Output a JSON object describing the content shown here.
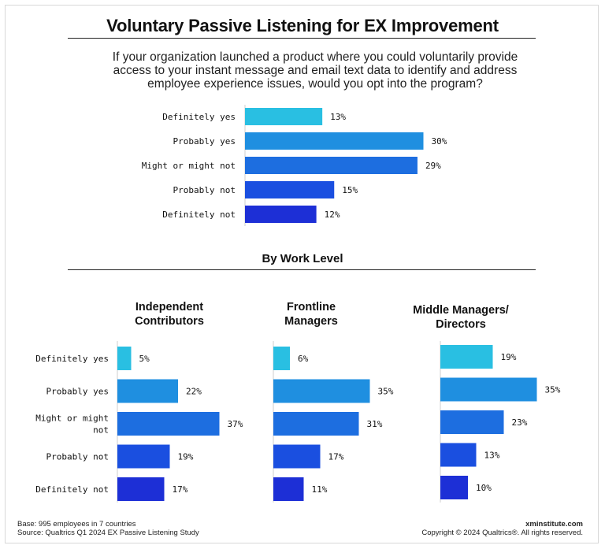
{
  "title": "Voluntary Passive Listening for EX Improvement",
  "question": "If your organization launched a product where you could voluntarily provide access to your instant message and email text data to identify and address employee experience issues, would you opt into the program?",
  "subtitle": "By Work Level",
  "footer": {
    "base": "Base: 995 employees in 7 countries",
    "source": "Source: Qualtrics Q1 2024 EX Passive Listening Study",
    "brand": "xminstitute.com",
    "copyright": "Copyright © 2024 Qualtrics®. All rights reserved."
  },
  "colors": [
    "#29bfe2",
    "#1f8fe0",
    "#1d6ee0",
    "#1a4fe0",
    "#1d2fd6"
  ],
  "chart_data": [
    {
      "type": "bar",
      "orientation": "horizontal",
      "title": "Overall",
      "categories": [
        "Definitely yes",
        "Probably yes",
        "Might or might not",
        "Probably not",
        "Definitely not"
      ],
      "values": [
        13,
        30,
        29,
        15,
        12
      ],
      "unit": "%"
    },
    {
      "type": "bar",
      "orientation": "horizontal",
      "title": "Independent Contributors",
      "title_lines": [
        "Independent",
        "Contributors"
      ],
      "categories": [
        "Definitely yes",
        "Probably yes",
        "Might or might not",
        "Probably not",
        "Definitely not"
      ],
      "category_lines": [
        [
          "Definitely yes"
        ],
        [
          "Probably yes"
        ],
        [
          "Might or might",
          "not"
        ],
        [
          "Probably not"
        ],
        [
          "Definitely not"
        ]
      ],
      "values": [
        5,
        22,
        37,
        19,
        17
      ],
      "unit": "%"
    },
    {
      "type": "bar",
      "orientation": "horizontal",
      "title": "Frontline Managers",
      "title_lines": [
        "Frontline",
        "Managers"
      ],
      "categories": [
        "Definitely yes",
        "Probably yes",
        "Might or might not",
        "Probably not",
        "Definitely not"
      ],
      "values": [
        6,
        35,
        31,
        17,
        11
      ],
      "unit": "%"
    },
    {
      "type": "bar",
      "orientation": "horizontal",
      "title": "Middle Managers/ Directors",
      "title_lines": [
        "Middle Managers/",
        "Directors"
      ],
      "categories": [
        "Definitely yes",
        "Probably yes",
        "Might or might not",
        "Probably not",
        "Definitely not"
      ],
      "values": [
        19,
        35,
        23,
        13,
        10
      ],
      "unit": "%"
    }
  ]
}
